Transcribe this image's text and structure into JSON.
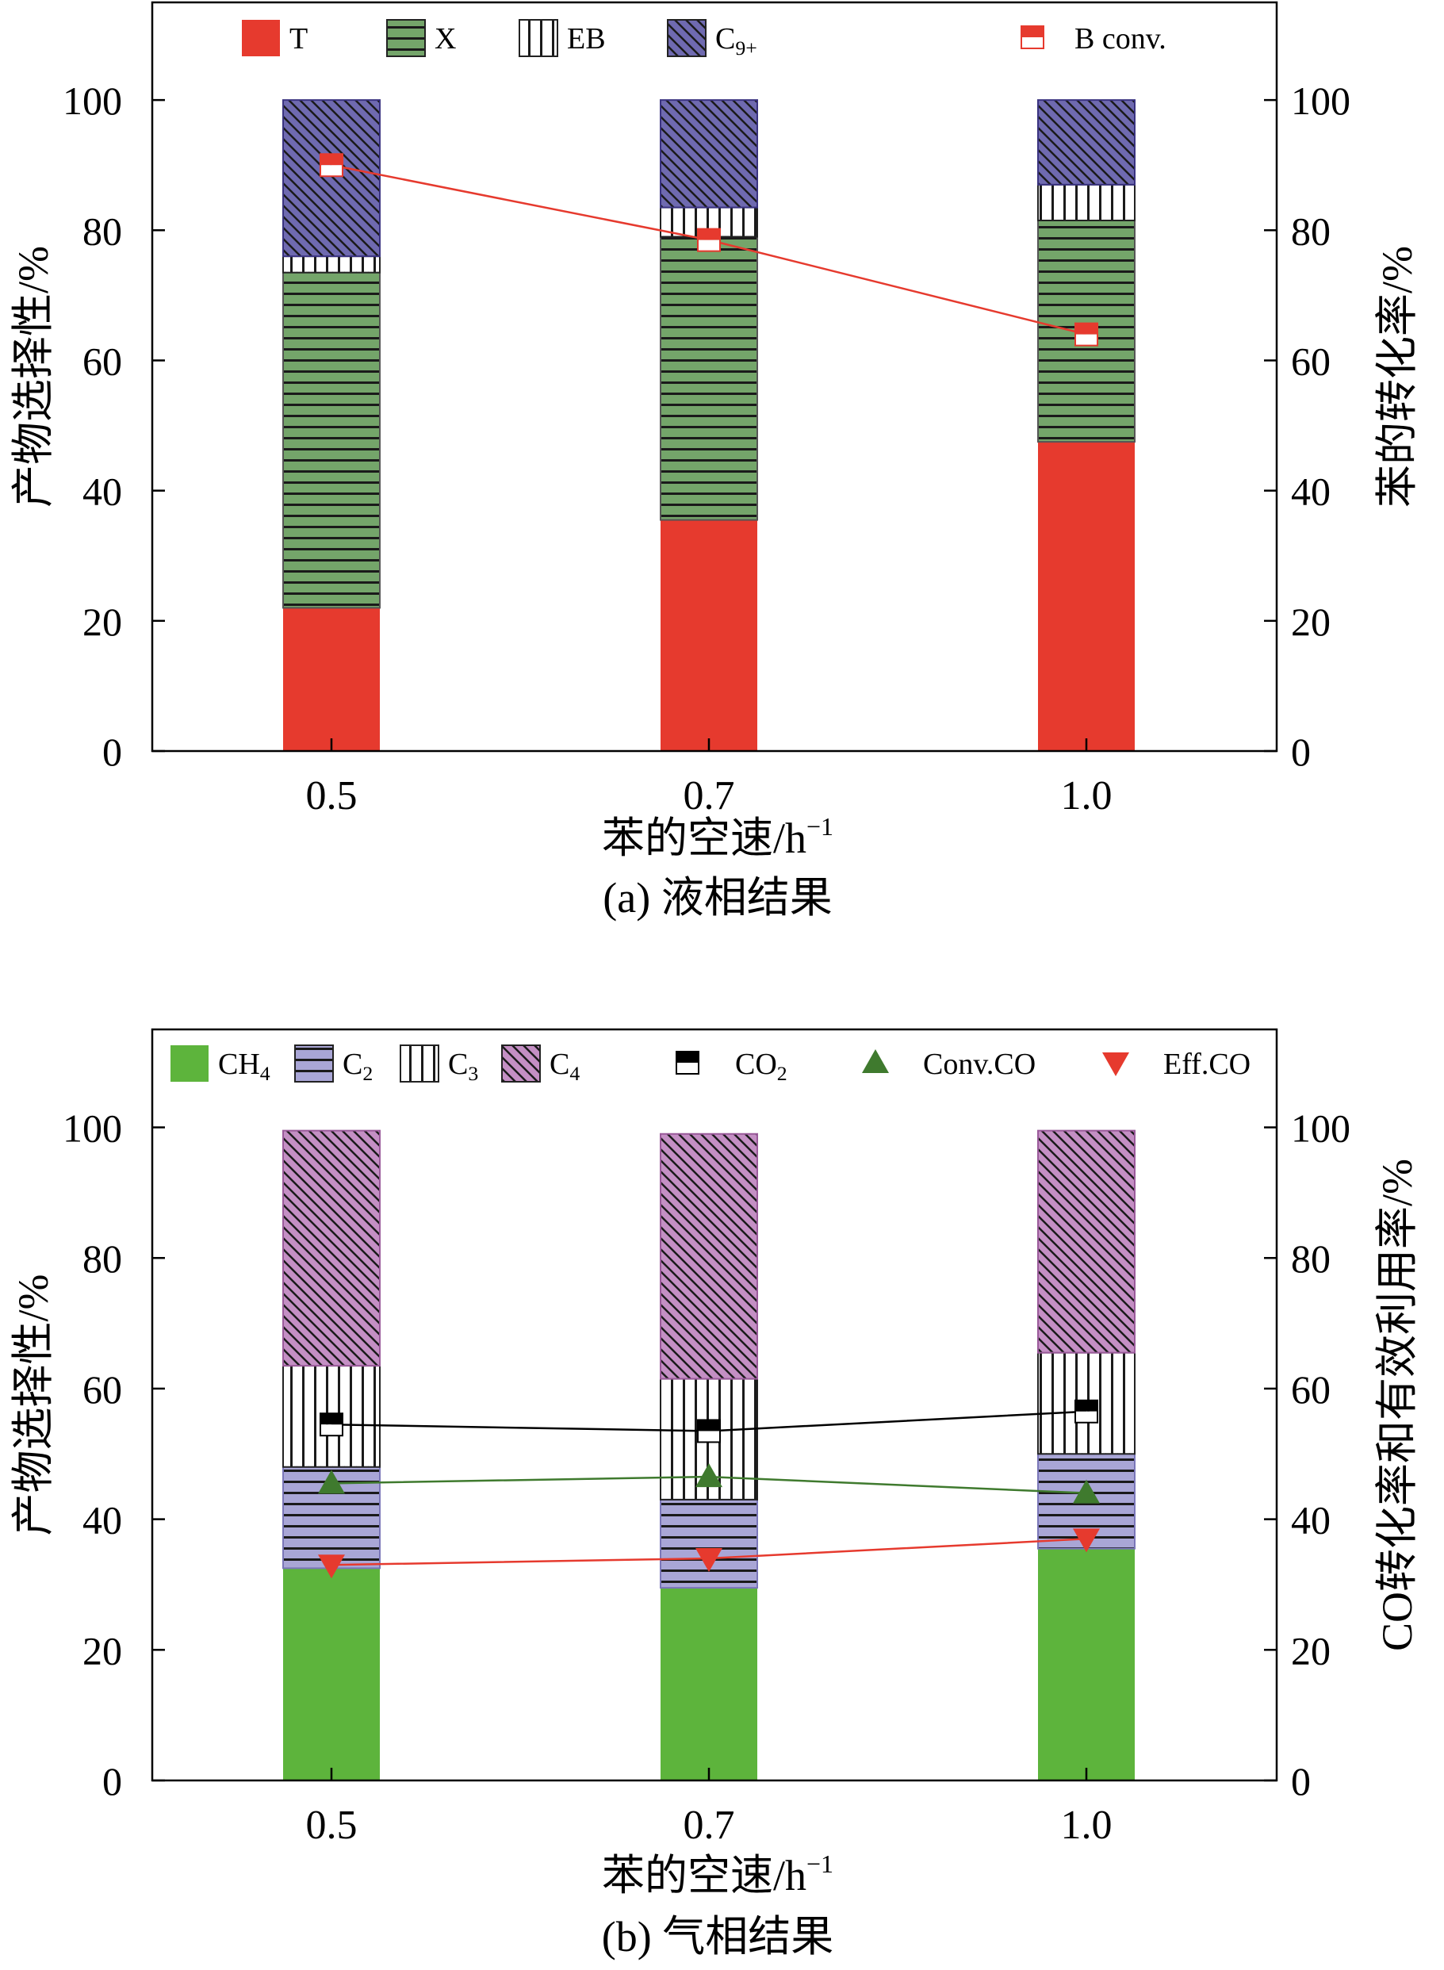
{
  "chart_data": [
    {
      "type": "bar",
      "stacked": true,
      "caption": "(a) 液相结果",
      "xlabel": "苯的空速/h",
      "xlabel_sup": "−1",
      "ylabel": "产物选择性/%",
      "y2label": "苯的转化率/%",
      "ylim": [
        0,
        115
      ],
      "y2lim": [
        0,
        115
      ],
      "yticks": [
        "0",
        "20",
        "40",
        "60",
        "80",
        "100"
      ],
      "y2ticks": [
        "0",
        "20",
        "40",
        "60",
        "80",
        "100"
      ],
      "categories": [
        "0.5",
        "0.7",
        "1.0"
      ],
      "series": [
        {
          "name": "T",
          "sub": "",
          "values": [
            22,
            35.5,
            47.5
          ],
          "color": "#e63a2e",
          "pattern": "solid"
        },
        {
          "name": "X",
          "sub": "",
          "values": [
            51.5,
            43.5,
            34
          ],
          "color": "#74a56a",
          "pattern": "hlines"
        },
        {
          "name": "EB",
          "sub": "",
          "values": [
            2.5,
            4.5,
            5.5
          ],
          "color": "#ffffff",
          "pattern": "vlines"
        },
        {
          "name": "C",
          "sub": "9+",
          "values": [
            24,
            16.5,
            13
          ],
          "color": "#6f6ab0",
          "pattern": "diag"
        }
      ],
      "lines": [
        {
          "name": "B conv.",
          "sub": "",
          "values": [
            90,
            78.5,
            64
          ],
          "color": "#e63a2e",
          "marker": "halfsquare"
        }
      ],
      "legend": "top"
    },
    {
      "type": "bar",
      "stacked": true,
      "caption": "(b) 气相结果",
      "xlabel": "苯的空速/h",
      "xlabel_sup": "−1",
      "ylabel": "产物选择性/%",
      "y2label": "CO转化率和有效利用率/%",
      "ylim": [
        0,
        115
      ],
      "y2lim": [
        0,
        115
      ],
      "yticks": [
        "0",
        "20",
        "40",
        "60",
        "80",
        "100"
      ],
      "y2ticks": [
        "0",
        "20",
        "40",
        "60",
        "80",
        "100"
      ],
      "categories": [
        "0.5",
        "0.7",
        "1.0"
      ],
      "series": [
        {
          "name": "CH",
          "sub": "4",
          "values": [
            32.5,
            29.5,
            35.5
          ],
          "color": "#5db43c",
          "pattern": "solid"
        },
        {
          "name": "C",
          "sub": "2",
          "values": [
            15.5,
            13.5,
            14.5
          ],
          "color": "#a9a6d6",
          "pattern": "hlines"
        },
        {
          "name": "C",
          "sub": "3",
          "values": [
            15.5,
            18.5,
            15.5
          ],
          "color": "#ffffff",
          "pattern": "vlines"
        },
        {
          "name": "C",
          "sub": "4",
          "values": [
            36,
            37.5,
            34
          ],
          "color": "#c48fc4",
          "pattern": "diag"
        }
      ],
      "lines": [
        {
          "name": "CO",
          "sub": "2",
          "values": [
            54.5,
            53.5,
            56.5
          ],
          "color": "#000000",
          "marker": "halfsquare"
        },
        {
          "name": "Conv.CO",
          "sub": "",
          "values": [
            45.5,
            46.5,
            44
          ],
          "color": "#3f7a2e",
          "marker": "triangle-up"
        },
        {
          "name": "Eff.CO",
          "sub": "",
          "values": [
            33,
            34,
            37
          ],
          "color": "#e63a2e",
          "marker": "triangle-down"
        }
      ],
      "legend": "top"
    }
  ]
}
